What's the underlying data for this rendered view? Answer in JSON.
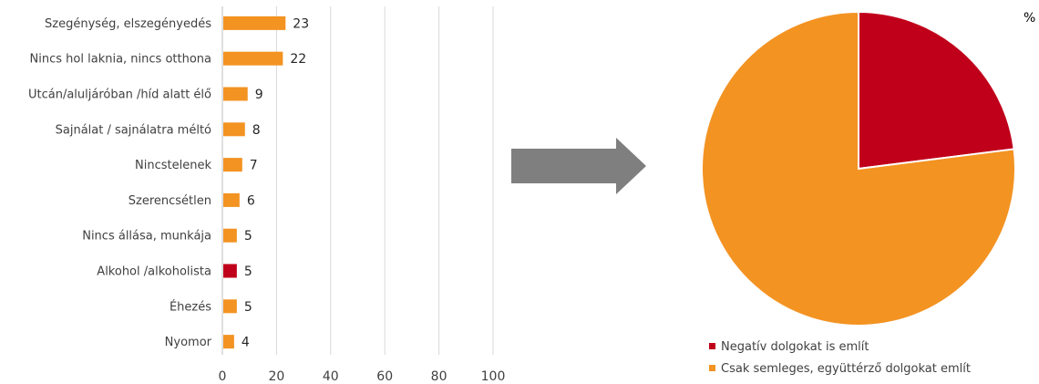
{
  "chart_data": [
    {
      "type": "bar",
      "orientation": "horizontal",
      "categories": [
        "Szegénység, elszegényedés",
        "Nincs hol laknia, nincs otthona",
        "Utcán/aluljáróban /híd alatt élő",
        "Sajnálat / sajnálatra méltó",
        "Nincstelenek",
        "Szerencsétlen",
        "Nincs állása, munkája",
        "Alkohol /alkoholista",
        "Éhezés",
        "Nyomor"
      ],
      "values": [
        23,
        22,
        9,
        8,
        7,
        6,
        5,
        5,
        5,
        4
      ],
      "bar_colors": [
        "#F39322",
        "#F39322",
        "#F39322",
        "#F39322",
        "#F39322",
        "#F39322",
        "#F39322",
        "#C0001A",
        "#F39322",
        "#F39322"
      ],
      "xlim": [
        0,
        100
      ],
      "xticks": [
        0,
        20,
        40,
        60,
        80,
        100
      ],
      "grid": "vertical",
      "title": "",
      "xlabel": "",
      "ylabel": ""
    },
    {
      "type": "pie",
      "unit_label": "%",
      "slices": [
        {
          "label": "Negatív dolgokat is említ",
          "value": 23,
          "color": "#C0001A"
        },
        {
          "label": "Csak semleges, együttérző dolgokat említ",
          "value": 77,
          "color": "#F39322"
        }
      ],
      "legend_position": "bottom-left"
    }
  ],
  "arrow": {
    "color": "#7F7F7F",
    "direction": "right"
  }
}
